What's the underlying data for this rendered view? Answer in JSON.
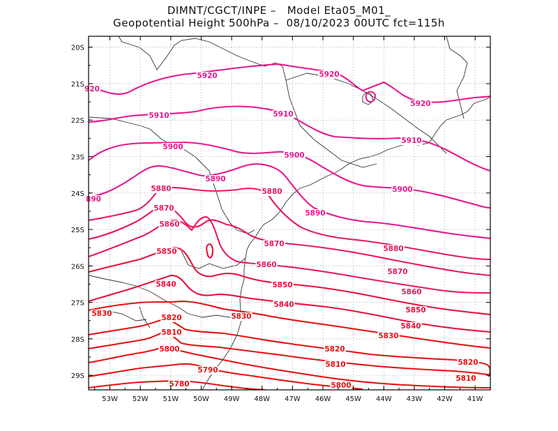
{
  "title_line1": "DIMNT/CGCT/INPE –   Model Eta05_M01_",
  "title_line2": "Geopotential Height 500hPa –  08/10/2023 00UTC fct=115h",
  "axes": {
    "lon_labels": [
      "53W",
      "52W",
      "51W",
      "50W",
      "49W",
      "48W",
      "47W",
      "46W",
      "45W",
      "44W",
      "43W",
      "42W",
      "41W"
    ],
    "lat_labels": [
      "20S",
      "21S",
      "22S",
      "23S",
      "24S",
      "25S",
      "26S",
      "27S",
      "28S",
      "29S"
    ],
    "lon_range": [
      -53.7,
      -40.5
    ],
    "lat_range": [
      -29.4,
      -19.7
    ]
  },
  "colors": {
    "frame": "#000000",
    "grid": "#9a9a9a",
    "coast": "#333333",
    "high_contours": "#e8188c",
    "mid_contours": "#e8103c",
    "low_contours": "#e81010"
  },
  "contour_labels": [
    {
      "text": "5920",
      "color": "#e8188c"
    },
    {
      "text": "5920",
      "color": "#e8188c"
    },
    {
      "text": "920",
      "color": "#e8188c"
    },
    {
      "text": "5920",
      "color": "#e8188c"
    },
    {
      "text": "5910",
      "color": "#e8188c"
    },
    {
      "text": "5910",
      "color": "#e8188c"
    },
    {
      "text": "5910",
      "color": "#e8188c"
    },
    {
      "text": "5900",
      "color": "#e8188c"
    },
    {
      "text": "5900",
      "color": "#e8188c"
    },
    {
      "text": "5900",
      "color": "#e8188c"
    },
    {
      "text": "5890",
      "color": "#e8188c"
    },
    {
      "text": "890",
      "color": "#e8188c"
    },
    {
      "text": "5890",
      "color": "#e8188c"
    },
    {
      "text": "5880",
      "color": "#e81860"
    },
    {
      "text": "5880",
      "color": "#e81860"
    },
    {
      "text": "5880",
      "color": "#e81860"
    },
    {
      "text": "5870",
      "color": "#e81860"
    },
    {
      "text": "5870",
      "color": "#e81860"
    },
    {
      "text": "5870",
      "color": "#e81860"
    },
    {
      "text": "5860",
      "color": "#e81860"
    },
    {
      "text": "5860",
      "color": "#e81860"
    },
    {
      "text": "5860",
      "color": "#e81860"
    },
    {
      "text": "5850",
      "color": "#e8103c"
    },
    {
      "text": "5850",
      "color": "#e8103c"
    },
    {
      "text": "5850",
      "color": "#e8103c"
    },
    {
      "text": "5840",
      "color": "#e8103c"
    },
    {
      "text": "5840",
      "color": "#e8103c"
    },
    {
      "text": "5840",
      "color": "#e8103c"
    },
    {
      "text": "5830",
      "color": "#e81010"
    },
    {
      "text": "5830",
      "color": "#e81010"
    },
    {
      "text": "5830",
      "color": "#e81010"
    },
    {
      "text": "5820",
      "color": "#e81010"
    },
    {
      "text": "5820",
      "color": "#e81010"
    },
    {
      "text": "5820",
      "color": "#e81010"
    },
    {
      "text": "5810",
      "color": "#e81010"
    },
    {
      "text": "5810",
      "color": "#e81010"
    },
    {
      "text": "5810",
      "color": "#e81010"
    },
    {
      "text": "5800",
      "color": "#e81010"
    },
    {
      "text": "5800",
      "color": "#e81010"
    },
    {
      "text": "5790",
      "color": "#e81010"
    },
    {
      "text": "5780",
      "color": "#e81010"
    }
  ]
}
